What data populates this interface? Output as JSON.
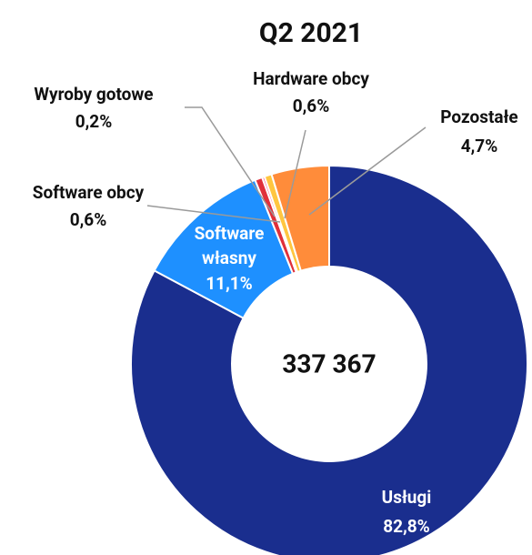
{
  "chart_data": {
    "type": "donut",
    "title": "Q2 2021",
    "center_text": "337 367",
    "categories": [
      "Usługi",
      "Software własny",
      "Software obcy",
      "Wyroby gotowe",
      "Hardware obcy",
      "Pozostałe"
    ],
    "values": [
      82.8,
      11.1,
      0.6,
      0.2,
      0.6,
      4.7
    ],
    "value_labels": [
      "82,8%",
      "11,1%",
      "0,6%",
      "0,2%",
      "0,6%",
      "4,7%"
    ],
    "colors": [
      "#1a2e8e",
      "#1e90ff",
      "#e0303a",
      "#ff5a8a",
      "#ffc640",
      "#ff8c3a"
    ]
  }
}
